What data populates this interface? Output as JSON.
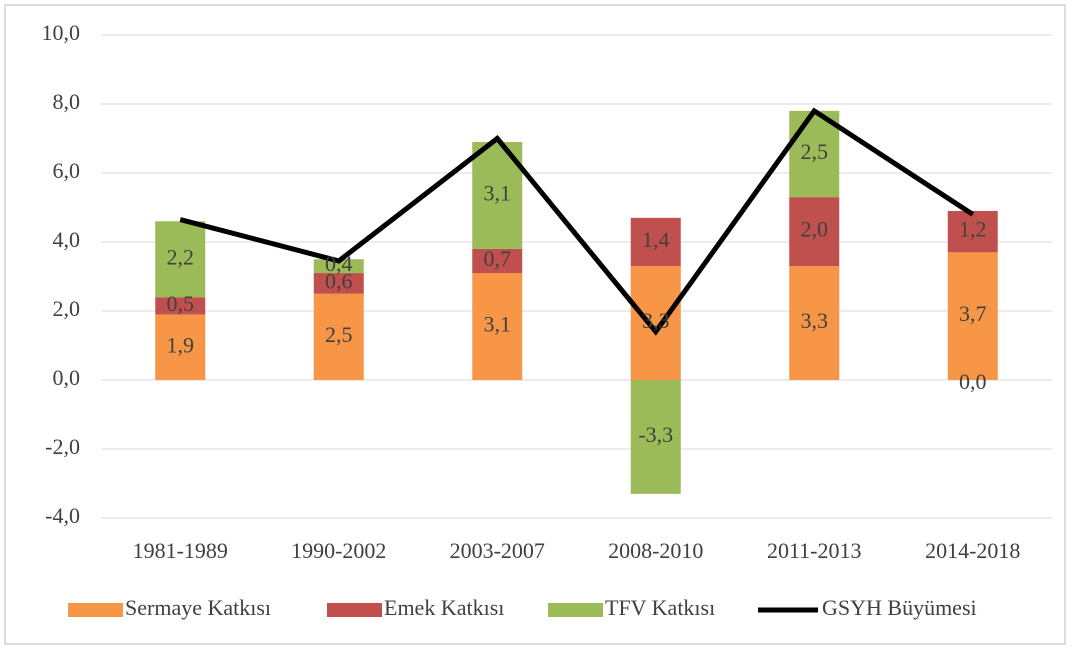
{
  "chart_data": {
    "type": "stacked-bar-line",
    "categories": [
      "1981-1989",
      "1990-2002",
      "2003-2007",
      "2008-2010",
      "2011-2013",
      "2014-2018"
    ],
    "series": [
      {
        "name": "Sermaye Katkısı",
        "color": "#f79646",
        "kind": "bar",
        "values": [
          1.9,
          2.5,
          3.1,
          3.3,
          3.3,
          3.7
        ],
        "value_labels": [
          "1,9",
          "2,5",
          "3,1",
          "3,3",
          "3,3",
          "3,7"
        ]
      },
      {
        "name": "Emek Katkısı",
        "color": "#c0504d",
        "kind": "bar",
        "values": [
          0.5,
          0.6,
          0.7,
          1.4,
          2.0,
          1.2
        ],
        "value_labels": [
          "0,5",
          "0,6",
          "0,7",
          "1,4",
          "2,0",
          "1,2"
        ]
      },
      {
        "name": "TFV Katkısı",
        "color": "#9bbb59",
        "kind": "bar",
        "values": [
          2.2,
          0.4,
          3.1,
          -3.3,
          2.5,
          0.0
        ],
        "value_labels": [
          "2,2",
          "0,4",
          "3,1",
          "-3,3",
          "2,5",
          "0,0"
        ]
      },
      {
        "name": "GSYH Büyümesi",
        "color": "#000000",
        "kind": "line",
        "values": [
          4.65,
          3.45,
          7.0,
          1.4,
          7.8,
          4.8
        ]
      }
    ],
    "ylim": [
      -4,
      10
    ],
    "yticks": [
      {
        "value": -4,
        "label": "-4,0"
      },
      {
        "value": -2,
        "label": "-2,0"
      },
      {
        "value": 0,
        "label": "0,0"
      },
      {
        "value": 2,
        "label": "2,0"
      },
      {
        "value": 4,
        "label": "4,0"
      },
      {
        "value": 6,
        "label": "6,0"
      },
      {
        "value": 8,
        "label": "8,0"
      },
      {
        "value": 10,
        "label": "10,0"
      }
    ],
    "grid": true
  }
}
